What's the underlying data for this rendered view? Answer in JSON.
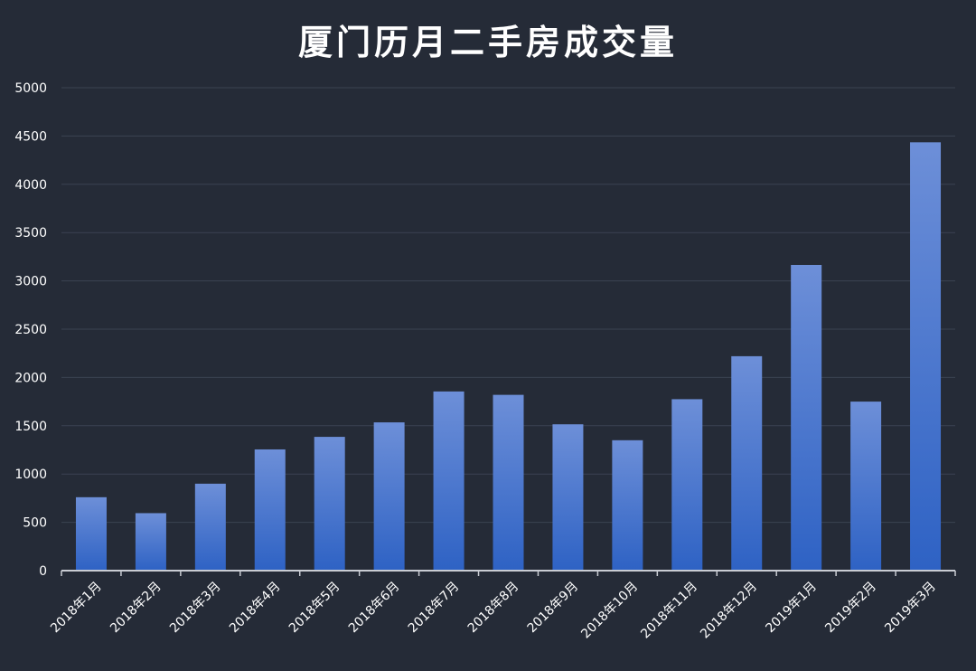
{
  "colors": {
    "background": "#252b37",
    "grid": "#3b4352",
    "axis": "#c9ccd3",
    "text": "#ffffff",
    "bar_top": "#6d8fd8",
    "bar_bottom": "#2e62c4"
  },
  "chart_data": {
    "type": "bar",
    "title": "厦门历月二手房成交量",
    "xlabel": "",
    "ylabel": "",
    "ylim": [
      0,
      5000
    ],
    "yticks": [
      0,
      500,
      1000,
      1500,
      2000,
      2500,
      3000,
      3500,
      4000,
      4500,
      5000
    ],
    "grid": true,
    "categories": [
      "2018年1月",
      "2018年2月",
      "2018年3月",
      "2018年4月",
      "2018年5月",
      "2018年6月",
      "2018年7月",
      "2018年8月",
      "2018年9月",
      "2018年10月",
      "2018年11月",
      "2018年12月",
      "2019年1月",
      "2019年2月",
      "2019年3月"
    ],
    "values": [
      760,
      595,
      900,
      1255,
      1385,
      1535,
      1855,
      1820,
      1515,
      1350,
      1775,
      2220,
      3165,
      1750,
      4435
    ]
  }
}
